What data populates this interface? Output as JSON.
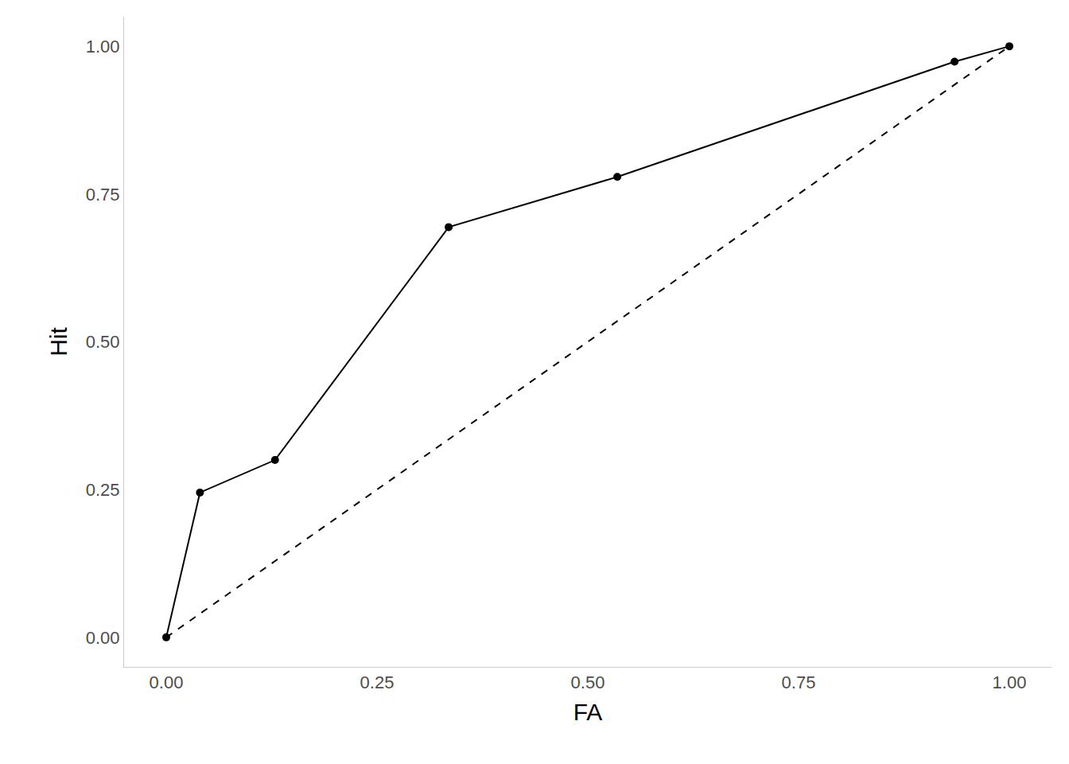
{
  "chart_data": {
    "type": "line",
    "x_label": "FA",
    "y_label": "Hit",
    "series": [
      {
        "x": [
          0,
          0.04,
          0.129,
          0.335,
          0.535,
          0.935,
          1
        ],
        "values": [
          0,
          0.245,
          0.3,
          0.694,
          0.779,
          0.974,
          1
        ],
        "color": "#000000",
        "marker": "circle",
        "line_style": "solid"
      },
      {
        "x": [
          0,
          1
        ],
        "values": [
          0,
          1
        ],
        "color": "#000000",
        "marker": "none",
        "line_style": "dash"
      }
    ],
    "xlim": [
      -0.05,
      1.05
    ],
    "xticks": [
      {
        "value": 0,
        "label": "0.00"
      },
      {
        "value": 0.25,
        "label": "0.25"
      },
      {
        "value": 0.5,
        "label": "0.50"
      },
      {
        "value": 0.75,
        "label": "0.75"
      },
      {
        "value": 1,
        "label": "1.00"
      }
    ],
    "ylim": [
      -0.05,
      1.05
    ],
    "yticks": [
      {
        "value": 0,
        "label": "0.00"
      },
      {
        "value": 0.25,
        "label": "0.25"
      },
      {
        "value": 0.5,
        "label": "0.50"
      },
      {
        "value": 0.75,
        "label": "0.75"
      },
      {
        "value": 1,
        "label": "1.00"
      }
    ],
    "grid": false
  }
}
